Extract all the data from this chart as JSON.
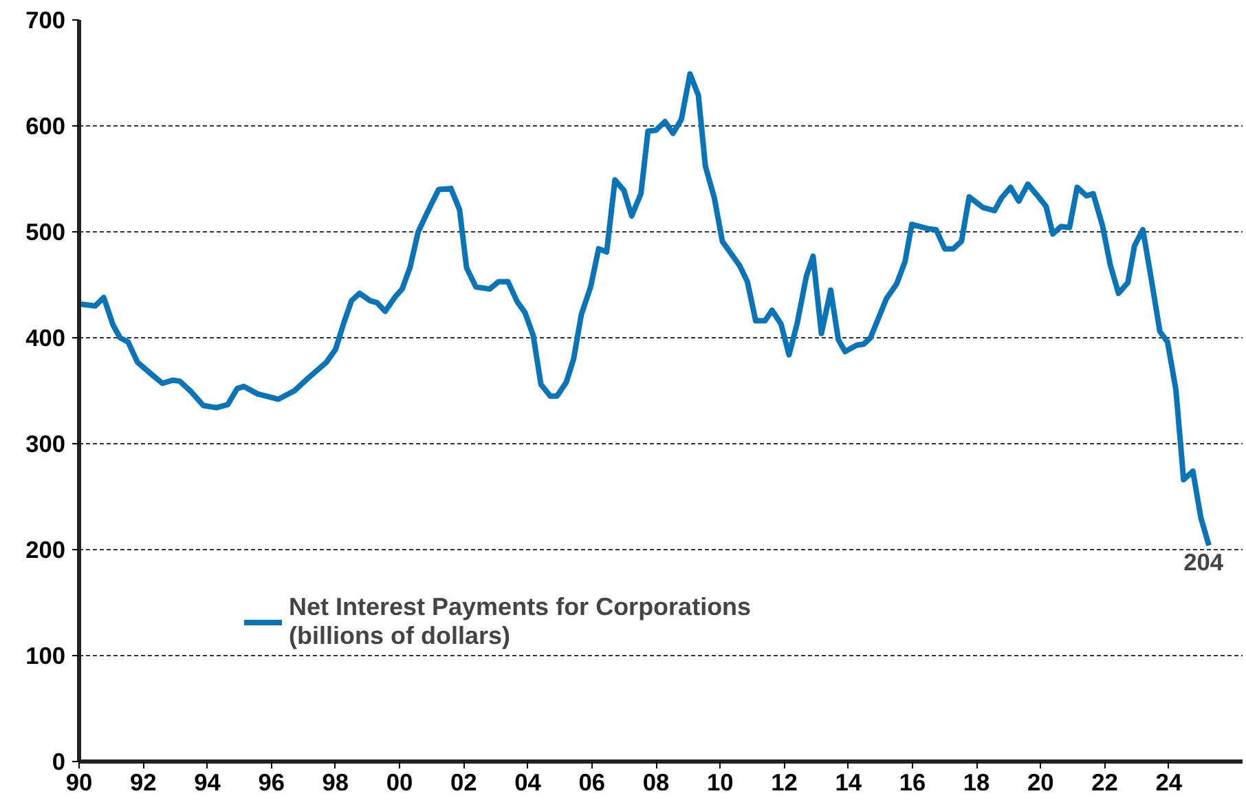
{
  "chart_data": {
    "type": "line",
    "xlim": [
      1990,
      2026.3
    ],
    "ylim": [
      0,
      700
    ],
    "xticks": [
      {
        "value": 1990,
        "label": "90"
      },
      {
        "value": 1992,
        "label": "92"
      },
      {
        "value": 1994,
        "label": "94"
      },
      {
        "value": 1996,
        "label": "96"
      },
      {
        "value": 1998,
        "label": "98"
      },
      {
        "value": 2000,
        "label": "00"
      },
      {
        "value": 2002,
        "label": "02"
      },
      {
        "value": 2004,
        "label": "04"
      },
      {
        "value": 2006,
        "label": "06"
      },
      {
        "value": 2008,
        "label": "08"
      },
      {
        "value": 2010,
        "label": "10"
      },
      {
        "value": 2012,
        "label": "12"
      },
      {
        "value": 2014,
        "label": "14"
      },
      {
        "value": 2016,
        "label": "16"
      },
      {
        "value": 2018,
        "label": "18"
      },
      {
        "value": 2020,
        "label": "20"
      },
      {
        "value": 2022,
        "label": "22"
      },
      {
        "value": 2024,
        "label": "24"
      }
    ],
    "yticks": [
      0,
      100,
      200,
      300,
      400,
      500,
      600,
      700
    ],
    "grid": "y",
    "legend": "bottom left",
    "marker": "none",
    "line_style": "solid",
    "annotations": [
      {
        "text": "204",
        "x": 2025.25,
        "y": 204
      }
    ],
    "series": [
      {
        "name": "Net Interest Payments for Corporations\n(billions of dollars)",
        "color": "#0a74b8",
        "x": [
          1990.0,
          1990.5,
          1990.77,
          1991.06,
          1991.28,
          1991.53,
          1991.82,
          1992.28,
          1992.6,
          1992.92,
          1993.14,
          1993.5,
          1993.88,
          1994.28,
          1994.64,
          1994.93,
          1995.14,
          1995.57,
          1996.22,
          1996.72,
          1997.15,
          1997.72,
          1998.0,
          1998.27,
          1998.5,
          1998.75,
          1999.08,
          1999.3,
          1999.55,
          1999.87,
          2000.08,
          2000.33,
          2000.58,
          2000.94,
          2001.22,
          2001.6,
          2001.87,
          2002.09,
          2002.38,
          2002.81,
          2003.09,
          2003.38,
          2003.67,
          2003.91,
          2004.17,
          2004.41,
          2004.7,
          2004.91,
          2005.2,
          2005.43,
          2005.67,
          2005.96,
          2006.21,
          2006.46,
          2006.72,
          2007.0,
          2007.24,
          2007.53,
          2007.75,
          2008.0,
          2008.28,
          2008.53,
          2008.79,
          2009.06,
          2009.32,
          2009.54,
          2009.82,
          2010.07,
          2010.33,
          2010.61,
          2010.85,
          2011.11,
          2011.4,
          2011.62,
          2011.9,
          2012.15,
          2012.4,
          2012.69,
          2012.9,
          2013.16,
          2013.45,
          2013.69,
          2013.9,
          2014.26,
          2014.48,
          2014.69,
          2015.19,
          2015.51,
          2015.77,
          2015.98,
          2016.48,
          2016.74,
          2017.01,
          2017.27,
          2017.53,
          2017.77,
          2018.2,
          2018.56,
          2018.78,
          2019.06,
          2019.32,
          2019.6,
          2019.88,
          2020.17,
          2020.38,
          2020.64,
          2020.9,
          2021.14,
          2021.43,
          2021.64,
          2021.93,
          2022.17,
          2022.43,
          2022.72,
          2022.93,
          2023.19,
          2023.46,
          2023.72,
          2023.96,
          2024.22,
          2024.46,
          2024.75,
          2025.0,
          2025.25
        ],
        "values": [
          432,
          430,
          438,
          412,
          400,
          396,
          377,
          365,
          357,
          360,
          359,
          349,
          336,
          334,
          337,
          352,
          354,
          347,
          342,
          350,
          362,
          377,
          389,
          415,
          435,
          442,
          435,
          433,
          425,
          439,
          446,
          467,
          500,
          523,
          540,
          541,
          521,
          466,
          448,
          446,
          453,
          453,
          434,
          424,
          402,
          356,
          345,
          345,
          358,
          380,
          422,
          448,
          484,
          481,
          549,
          539,
          515,
          536,
          595,
          596,
          604,
          593,
          606,
          649,
          629,
          562,
          532,
          491,
          480,
          468,
          453,
          416,
          416,
          426,
          413,
          384,
          413,
          458,
          477,
          404,
          445,
          398,
          387,
          393,
          394,
          400,
          437,
          451,
          472,
          507,
          503,
          502,
          484,
          484,
          491,
          533,
          523,
          520,
          532,
          542,
          529,
          545,
          535,
          524,
          498,
          505,
          504,
          542,
          534,
          536,
          506,
          469,
          442,
          452,
          487,
          502,
          454,
          406,
          396,
          351,
          266,
          274,
          230,
          204
        ]
      }
    ]
  }
}
